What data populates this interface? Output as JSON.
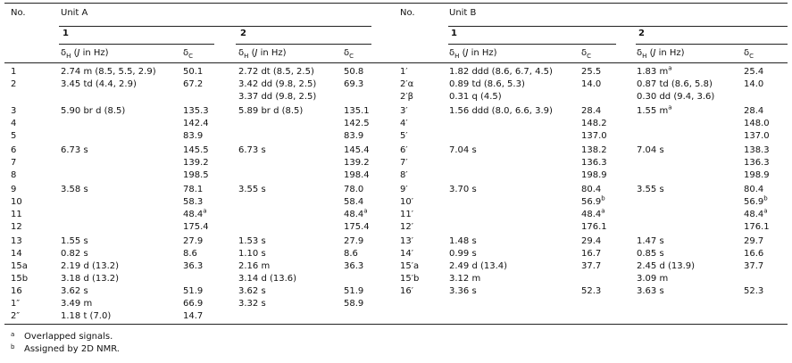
{
  "units": [
    {
      "no_label": "No.",
      "title": "Unit A",
      "compounds": [
        {
          "label": "1",
          "dh": {
            "delta": "δ",
            "sub": "H",
            "open": "(",
            "var": "J",
            "rest": " in Hz)"
          },
          "dc": {
            "delta": "δ",
            "sub": "C"
          }
        },
        {
          "label": "2",
          "dh": {
            "delta": "δ",
            "sub": "H",
            "open": "(",
            "var": "J",
            "rest": " in Hz)"
          },
          "dc": {
            "delta": "δ",
            "sub": "C"
          }
        }
      ],
      "row_groups": [
        [
          [
            "1",
            "2.74 m (8.5, 5.5, 2.9)",
            "50.1",
            "2.72 dt (8.5, 2.5)",
            "50.8"
          ],
          [
            "2",
            "3.45 td (4.4, 2.9)",
            "67.2",
            "3.42 dd (9.8, 2.5)",
            "69.3"
          ],
          [
            null,
            null,
            null,
            "3.37 dd (9.8, 2.5)",
            null
          ]
        ],
        [
          [
            "3",
            "5.90 br d (8.5)",
            "135.3",
            "5.89 br d (8.5)",
            "135.1"
          ],
          [
            "4",
            null,
            "142.4",
            null,
            "142.5"
          ],
          [
            "5",
            null,
            "83.9",
            null,
            "83.9"
          ]
        ],
        [
          [
            "6",
            "6.73 s",
            "145.5",
            "6.73 s",
            "145.4"
          ],
          [
            "7",
            null,
            "139.2",
            null,
            "139.2"
          ],
          [
            "8",
            null,
            "198.5",
            null,
            "198.4"
          ]
        ],
        [
          [
            "9",
            "3.58 s",
            "78.1",
            "3.55 s",
            "78.0"
          ],
          [
            "10",
            null,
            "58.3",
            null,
            "58.4"
          ],
          [
            "11",
            null,
            {
              "text": "48.4",
              "sup": "a"
            },
            null,
            {
              "text": "48.4",
              "sup": "a"
            }
          ],
          [
            "12",
            null,
            "175.4",
            null,
            "175.4"
          ]
        ],
        [
          [
            "13",
            "1.55 s",
            "27.9",
            "1.53 s",
            "27.9"
          ],
          [
            "14",
            "0.82 s",
            "8.6",
            "1.10 s",
            "8.6"
          ],
          [
            "15a",
            "2.19 d (13.2)",
            "36.3",
            "2.16 m",
            "36.3"
          ],
          [
            "15b",
            "3.18 d (13.2)",
            null,
            "3.14 d (13.6)",
            null
          ],
          [
            "16",
            "3.62 s",
            "51.9",
            "3.62 s",
            "51.9"
          ],
          [
            "1″",
            "3.49 m",
            "66.9",
            "3.32 s",
            "58.9"
          ],
          [
            "2″",
            "1.18 t (7.0)",
            "14.7",
            null,
            null
          ]
        ]
      ]
    },
    {
      "no_label": "No.",
      "title": "Unit B",
      "compounds": [
        {
          "label": "1",
          "dh": {
            "delta": "δ",
            "sub": "H",
            "open": "(",
            "var": "J",
            "rest": " in Hz)"
          },
          "dc": {
            "delta": "δ",
            "sub": "C"
          }
        },
        {
          "label": "2",
          "dh": {
            "delta": "δ",
            "sub": "H",
            "open": "(",
            "var": "J",
            "rest": " in Hz)"
          },
          "dc": {
            "delta": "δ",
            "sub": "C"
          }
        }
      ],
      "row_groups": [
        [
          [
            "1′",
            "1.82 ddd (8.6, 6.7, 4.5)",
            "25.5",
            {
              "text": "1.83 m",
              "sup": "a"
            },
            "25.4"
          ],
          [
            "2′α",
            "0.89 td (8.6, 5.3)",
            "14.0",
            "0.87 td (8.6, 5.8)",
            "14.0"
          ],
          [
            "2′β",
            "0.31 q (4.5)",
            null,
            "0.30 dd (9.4, 3.6)",
            null
          ]
        ],
        [
          [
            "3′",
            "1.56 ddd (8.0, 6.6, 3.9)",
            "28.4",
            {
              "text": "1.55 m",
              "sup": "a"
            },
            "28.4"
          ],
          [
            "4′",
            null,
            "148.2",
            null,
            "148.0"
          ],
          [
            "5′",
            null,
            "137.0",
            null,
            "137.0"
          ]
        ],
        [
          [
            "6′",
            "7.04 s",
            "138.2",
            "7.04 s",
            "138.3"
          ],
          [
            "7′",
            null,
            "136.3",
            null,
            "136.3"
          ],
          [
            "8′",
            null,
            "198.9",
            null,
            "198.9"
          ]
        ],
        [
          [
            "9′",
            "3.70 s",
            "80.4",
            "3.55 s",
            "80.4"
          ],
          [
            "10′",
            null,
            {
              "text": "56.9",
              "sup": "b"
            },
            null,
            {
              "text": "56.9",
              "sup": "b"
            }
          ],
          [
            "11′",
            null,
            {
              "text": "48.4",
              "sup": "a"
            },
            null,
            {
              "text": "48.4",
              "sup": "a"
            }
          ],
          [
            "12′",
            null,
            "176.1",
            null,
            "176.1"
          ]
        ],
        [
          [
            "13′",
            "1.48 s",
            "29.4",
            "1.47 s",
            "29.7"
          ],
          [
            "14′",
            "0.99 s",
            "16.7",
            "0.85 s",
            "16.6"
          ],
          [
            "15′a",
            "2.49 d (13.4)",
            "37.7",
            "2.45 d (13.9)",
            "37.7"
          ],
          [
            "15′b",
            "3.12 m",
            null,
            "3.09 m",
            null
          ],
          [
            "16′",
            "3.36 s",
            "52.3",
            "3.63 s",
            "52.3"
          ]
        ]
      ]
    }
  ],
  "footnotes": [
    {
      "mark": "a",
      "text": "Overlapped signals."
    },
    {
      "mark": "b",
      "text": "Assigned by 2D NMR."
    }
  ]
}
